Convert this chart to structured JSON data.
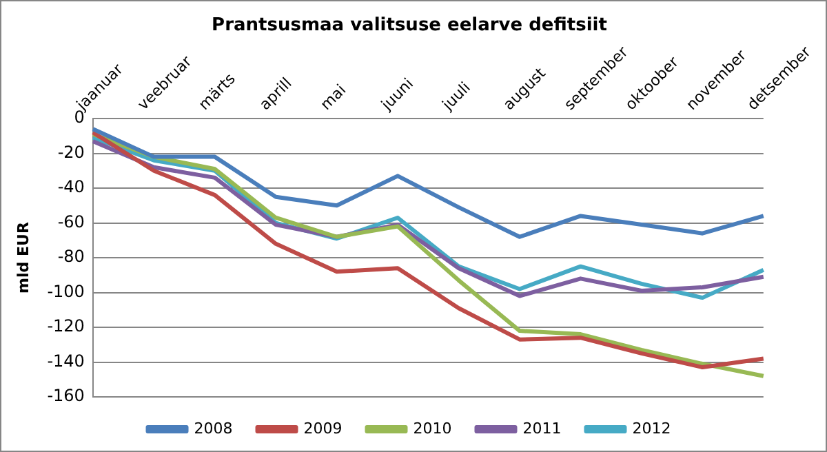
{
  "chart_data": {
    "type": "line",
    "title": "Prantsusmaa valitsuse eelarve defitsiit",
    "ylabel": "mld EUR",
    "categories": [
      "jaanuar",
      "veebruar",
      "märts",
      "aprill",
      "mai",
      "juuni",
      "juuli",
      "august",
      "september",
      "oktoober",
      "november",
      "detsember"
    ],
    "series": [
      {
        "name": "2008",
        "color": "#4a7ebb",
        "values": [
          -6,
          -22,
          -22,
          -45,
          -50,
          -33,
          -51,
          -68,
          -56,
          -61,
          -66,
          -56
        ]
      },
      {
        "name": "2009",
        "color": "#be4b48",
        "values": [
          -8,
          -30,
          -44,
          -72,
          -88,
          -86,
          -109,
          -127,
          -126,
          -135,
          -143,
          -138
        ]
      },
      {
        "name": "2010",
        "color": "#98b954",
        "values": [
          -9,
          -22,
          -29,
          -57,
          -68,
          -62,
          -93,
          -122,
          -124,
          -133,
          -141,
          -148
        ]
      },
      {
        "name": "2011",
        "color": "#7d5fa0",
        "values": [
          -13,
          -28,
          -34,
          -61,
          -68,
          -61,
          -86,
          -102,
          -92,
          -99,
          -97,
          -91
        ]
      },
      {
        "name": "2012",
        "color": "#46aac5",
        "values": [
          -11,
          -24,
          -30,
          -60,
          -69,
          -57,
          -85,
          -98,
          -85,
          -95,
          -103,
          -87
        ]
      }
    ],
    "ylim": [
      -160,
      0
    ],
    "yticks": [
      -160,
      -140,
      -120,
      -100,
      -80,
      -60,
      -40,
      -20,
      0
    ],
    "grid": "y",
    "legend": "bottom",
    "marker": "none",
    "line_style": "solid"
  }
}
